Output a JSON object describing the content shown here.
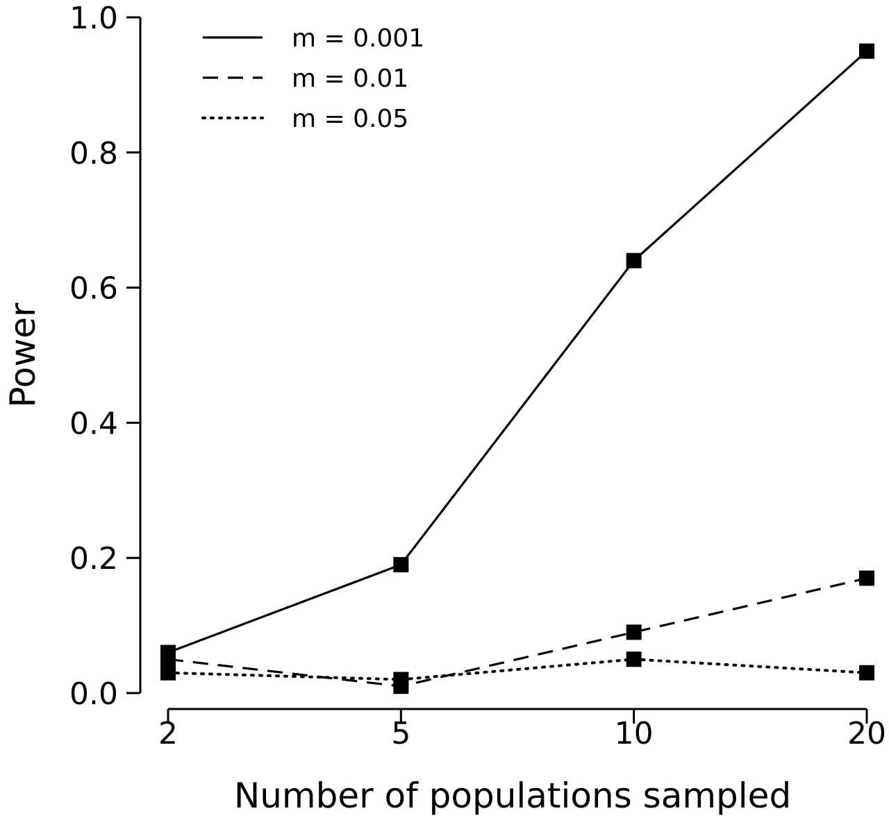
{
  "chart_data": {
    "type": "line",
    "title": "",
    "xlabel": "Number of populations sampled",
    "ylabel": "Power",
    "x": [
      2,
      5,
      10,
      20
    ],
    "x_tick_labels": [
      "2",
      "5",
      "10",
      "20"
    ],
    "y_ticks": [
      0.0,
      0.2,
      0.4,
      0.6,
      0.8,
      1.0
    ],
    "y_tick_labels": [
      "0.0",
      "0.2",
      "0.4",
      "0.6",
      "0.8",
      "1.0"
    ],
    "ylim": [
      0,
      1
    ],
    "x_scale": "categorical-equal-spacing",
    "grid": false,
    "legend_position": "top-left",
    "marker": "filled-square",
    "series": [
      {
        "name": "m = 0.001",
        "line_style": "solid",
        "values": [
          0.06,
          0.19,
          0.64,
          0.95
        ]
      },
      {
        "name": "m = 0.01",
        "line_style": "dashed",
        "values": [
          0.05,
          0.01,
          0.09,
          0.17
        ]
      },
      {
        "name": "m = 0.05",
        "line_style": "dotted",
        "values": [
          0.03,
          0.02,
          0.05,
          0.03
        ]
      }
    ],
    "colors": {
      "line": "#000000",
      "marker": "#000000",
      "background": "#ffffff"
    }
  }
}
